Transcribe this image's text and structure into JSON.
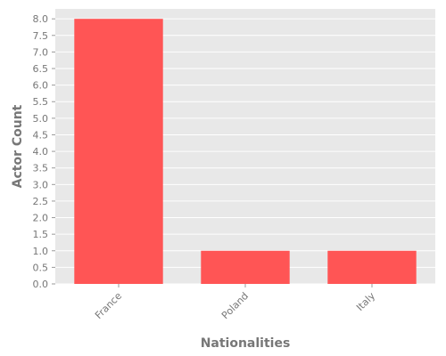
{
  "chart_data": {
    "type": "bar",
    "title": "",
    "xlabel": "Nationalities",
    "ylabel": "Actor Count",
    "categories": [
      "France",
      "Poland",
      "Italy"
    ],
    "values": [
      8,
      1,
      1
    ],
    "ylim": [
      0,
      8.3
    ],
    "yticks": [
      "0.0",
      "0.5",
      "1.0",
      "1.5",
      "2.0",
      "2.5",
      "3.0",
      "3.5",
      "4.0",
      "4.5",
      "5.0",
      "5.5",
      "6.0",
      "6.5",
      "7.0",
      "7.5",
      "8.0"
    ],
    "bar_color": "#ff5555",
    "background_color": "#e8e8e8",
    "grid": true,
    "legend": "none"
  }
}
